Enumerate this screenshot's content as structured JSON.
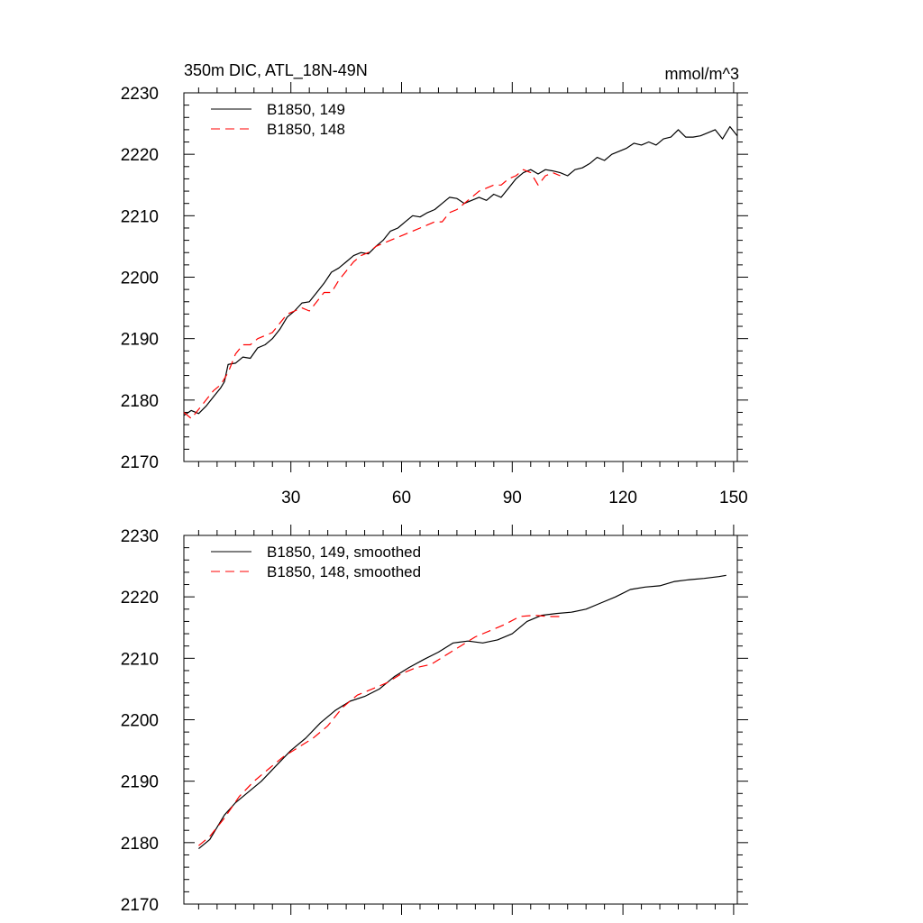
{
  "figure": {
    "title_left": "350m DIC, ATL_18N-49N",
    "title_right": "mmol/m^3"
  },
  "colors": {
    "series_149": "#000000",
    "series_148": "#ff0000"
  },
  "chart_data": [
    {
      "type": "line",
      "panel": "top",
      "title": "350m DIC, ATL_18N-49N",
      "units_label": "mmol/m^3",
      "xlabel": "",
      "ylabel": "",
      "xlim": [
        1,
        151
      ],
      "ylim": [
        2170,
        2230
      ],
      "x_ticks": [
        30,
        60,
        90,
        120,
        150
      ],
      "x_tick_labels": [
        "30",
        "60",
        "90",
        "120",
        "150"
      ],
      "y_ticks": [
        2170,
        2180,
        2190,
        2200,
        2210,
        2220,
        2230
      ],
      "y_tick_labels": [
        "2170",
        "2180",
        "2190",
        "2200",
        "2210",
        "2220",
        "2230"
      ],
      "legend_position": "top-left",
      "series": [
        {
          "name": "B1850, 149",
          "style": "solid",
          "color": "#000000",
          "points": [
            [
              1,
              2177.5
            ],
            [
              3,
              2178.3
            ],
            [
              5,
              2177.8
            ],
            [
              7,
              2179.0
            ],
            [
              9,
              2180.5
            ],
            [
              11,
              2182.0
            ],
            [
              12,
              2183.0
            ],
            [
              13,
              2185.8
            ],
            [
              15,
              2186.0
            ],
            [
              17,
              2187.0
            ],
            [
              19,
              2186.8
            ],
            [
              21,
              2188.5
            ],
            [
              23,
              2189.0
            ],
            [
              25,
              2190.0
            ],
            [
              27,
              2191.5
            ],
            [
              29,
              2193.5
            ],
            [
              31,
              2194.5
            ],
            [
              33,
              2195.8
            ],
            [
              35,
              2196.0
            ],
            [
              37,
              2197.5
            ],
            [
              39,
              2199.0
            ],
            [
              41,
              2200.8
            ],
            [
              43,
              2201.5
            ],
            [
              45,
              2202.5
            ],
            [
              47,
              2203.5
            ],
            [
              49,
              2204.0
            ],
            [
              51,
              2203.8
            ],
            [
              53,
              2205.0
            ],
            [
              55,
              2206.0
            ],
            [
              57,
              2207.5
            ],
            [
              59,
              2208.0
            ],
            [
              61,
              2209.0
            ],
            [
              63,
              2210.0
            ],
            [
              65,
              2209.8
            ],
            [
              67,
              2210.5
            ],
            [
              69,
              2211.0
            ],
            [
              71,
              2212.0
            ],
            [
              73,
              2213.0
            ],
            [
              75,
              2212.8
            ],
            [
              77,
              2212.0
            ],
            [
              79,
              2212.5
            ],
            [
              81,
              2213.0
            ],
            [
              83,
              2212.5
            ],
            [
              85,
              2213.5
            ],
            [
              87,
              2213.0
            ],
            [
              89,
              2214.5
            ],
            [
              91,
              2216.0
            ],
            [
              93,
              2217.0
            ],
            [
              95,
              2217.5
            ],
            [
              97,
              2216.8
            ],
            [
              99,
              2217.5
            ],
            [
              101,
              2217.3
            ],
            [
              103,
              2217.0
            ],
            [
              105,
              2216.5
            ],
            [
              107,
              2217.5
            ],
            [
              109,
              2217.8
            ],
            [
              111,
              2218.5
            ],
            [
              113,
              2219.5
            ],
            [
              115,
              2219.0
            ],
            [
              117,
              2220.0
            ],
            [
              119,
              2220.5
            ],
            [
              121,
              2221.0
            ],
            [
              123,
              2221.8
            ],
            [
              125,
              2221.5
            ],
            [
              127,
              2222.0
            ],
            [
              129,
              2221.5
            ],
            [
              131,
              2222.5
            ],
            [
              133,
              2222.8
            ],
            [
              135,
              2224.0
            ],
            [
              137,
              2222.8
            ],
            [
              139,
              2222.8
            ],
            [
              141,
              2223.0
            ],
            [
              143,
              2223.5
            ],
            [
              145,
              2224.0
            ],
            [
              147,
              2222.5
            ],
            [
              149,
              2224.5
            ],
            [
              151,
              2223.0
            ]
          ]
        },
        {
          "name": "B1850, 148",
          "style": "dashed",
          "color": "#ff0000",
          "points": [
            [
              1,
              2178.0
            ],
            [
              3,
              2177.0
            ],
            [
              5,
              2178.5
            ],
            [
              7,
              2180.0
            ],
            [
              9,
              2181.5
            ],
            [
              11,
              2182.5
            ],
            [
              13,
              2184.5
            ],
            [
              15,
              2187.5
            ],
            [
              17,
              2189.0
            ],
            [
              19,
              2189.0
            ],
            [
              21,
              2190.0
            ],
            [
              23,
              2190.5
            ],
            [
              25,
              2191.0
            ],
            [
              27,
              2192.5
            ],
            [
              29,
              2194.0
            ],
            [
              31,
              2194.5
            ],
            [
              33,
              2195.0
            ],
            [
              35,
              2194.5
            ],
            [
              37,
              2196.0
            ],
            [
              39,
              2197.5
            ],
            [
              41,
              2197.5
            ],
            [
              43,
              2199.5
            ],
            [
              45,
              2201.0
            ],
            [
              47,
              2202.5
            ],
            [
              49,
              2203.5
            ],
            [
              51,
              2204.0
            ],
            [
              53,
              2205.0
            ],
            [
              55,
              2205.5
            ],
            [
              57,
              2206.0
            ],
            [
              59,
              2206.5
            ],
            [
              61,
              2207.0
            ],
            [
              63,
              2207.5
            ],
            [
              65,
              2208.0
            ],
            [
              67,
              2208.5
            ],
            [
              69,
              2209.0
            ],
            [
              71,
              2209.0
            ],
            [
              73,
              2210.5
            ],
            [
              75,
              2211.0
            ],
            [
              77,
              2212.0
            ],
            [
              79,
              2213.0
            ],
            [
              81,
              2214.0
            ],
            [
              83,
              2214.5
            ],
            [
              85,
              2215.0
            ],
            [
              87,
              2215.0
            ],
            [
              89,
              2216.0
            ],
            [
              91,
              2216.5
            ],
            [
              93,
              2217.5
            ],
            [
              95,
              2217.0
            ],
            [
              97,
              2215.0
            ],
            [
              99,
              2216.5
            ],
            [
              101,
              2217.0
            ],
            [
              103,
              2216.5
            ]
          ]
        }
      ]
    },
    {
      "type": "line",
      "panel": "bottom",
      "title": "",
      "xlabel": "",
      "ylabel": "",
      "xlim": [
        1,
        151
      ],
      "ylim": [
        2170,
        2230
      ],
      "x_ticks": [
        30,
        60,
        90,
        120,
        150
      ],
      "y_ticks": [
        2170,
        2180,
        2190,
        2200,
        2210,
        2220,
        2230
      ],
      "y_tick_labels": [
        "2170",
        "2180",
        "2190",
        "2200",
        "2210",
        "2220",
        "2230"
      ],
      "legend_position": "top-left",
      "series": [
        {
          "name": "B1850, 149, smoothed",
          "style": "solid",
          "color": "#000000",
          "points": [
            [
              5,
              2179.0
            ],
            [
              8,
              2180.5
            ],
            [
              10,
              2182.5
            ],
            [
              12,
              2184.5
            ],
            [
              15,
              2186.5
            ],
            [
              18,
              2188.0
            ],
            [
              22,
              2190.0
            ],
            [
              26,
              2192.5
            ],
            [
              30,
              2195.0
            ],
            [
              34,
              2197.0
            ],
            [
              38,
              2199.5
            ],
            [
              42,
              2201.5
            ],
            [
              46,
              2203.0
            ],
            [
              50,
              2203.8
            ],
            [
              54,
              2205.0
            ],
            [
              58,
              2207.0
            ],
            [
              62,
              2208.5
            ],
            [
              66,
              2209.8
            ],
            [
              70,
              2211.0
            ],
            [
              74,
              2212.5
            ],
            [
              78,
              2212.8
            ],
            [
              82,
              2212.5
            ],
            [
              86,
              2213.0
            ],
            [
              90,
              2214.0
            ],
            [
              94,
              2216.0
            ],
            [
              98,
              2217.0
            ],
            [
              102,
              2217.3
            ],
            [
              106,
              2217.5
            ],
            [
              110,
              2218.0
            ],
            [
              114,
              2219.0
            ],
            [
              118,
              2220.0
            ],
            [
              122,
              2221.2
            ],
            [
              126,
              2221.6
            ],
            [
              130,
              2221.8
            ],
            [
              134,
              2222.5
            ],
            [
              138,
              2222.8
            ],
            [
              142,
              2223.0
            ],
            [
              146,
              2223.3
            ],
            [
              148,
              2223.5
            ]
          ]
        },
        {
          "name": "B1850, 148, smoothed",
          "style": "dashed",
          "color": "#ff0000",
          "points": [
            [
              5,
              2179.5
            ],
            [
              8,
              2181.0
            ],
            [
              12,
              2184.0
            ],
            [
              16,
              2187.5
            ],
            [
              20,
              2190.0
            ],
            [
              24,
              2192.0
            ],
            [
              28,
              2194.0
            ],
            [
              32,
              2195.5
            ],
            [
              36,
              2197.0
            ],
            [
              40,
              2199.0
            ],
            [
              44,
              2202.0
            ],
            [
              48,
              2204.0
            ],
            [
              52,
              2205.0
            ],
            [
              56,
              2206.0
            ],
            [
              60,
              2207.5
            ],
            [
              64,
              2208.5
            ],
            [
              68,
              2209.0
            ],
            [
              72,
              2210.5
            ],
            [
              76,
              2212.0
            ],
            [
              80,
              2213.5
            ],
            [
              84,
              2214.5
            ],
            [
              88,
              2215.5
            ],
            [
              92,
              2216.8
            ],
            [
              96,
              2217.0
            ],
            [
              100,
              2216.8
            ],
            [
              104,
              2216.8
            ]
          ]
        }
      ]
    }
  ]
}
